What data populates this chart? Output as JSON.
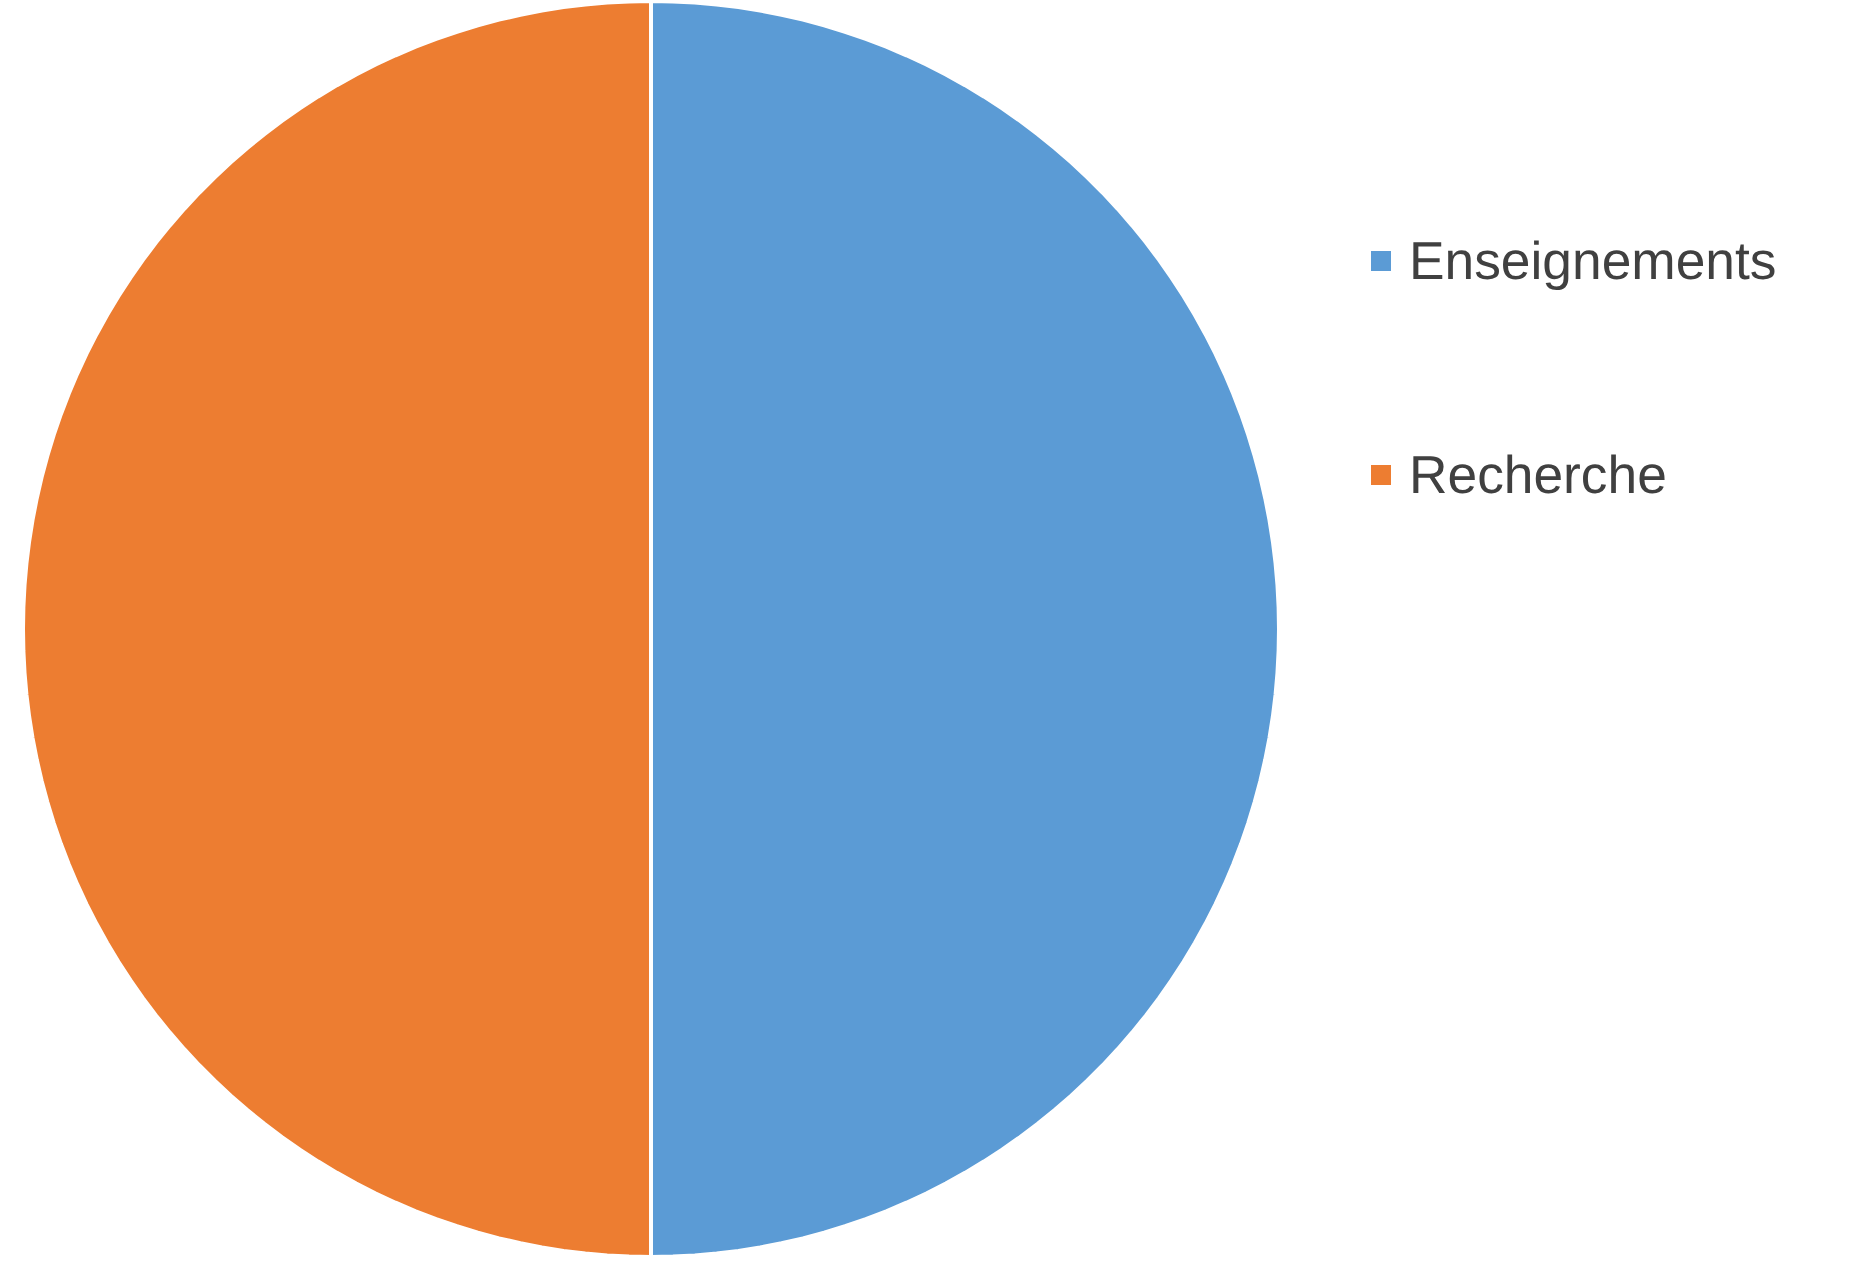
{
  "chart_data": {
    "type": "pie",
    "categories": [
      "Enseignements",
      "Recherche"
    ],
    "values": [
      50,
      50
    ],
    "colors": [
      "#5b9bd5",
      "#ed7d31"
    ],
    "legend": "right"
  }
}
